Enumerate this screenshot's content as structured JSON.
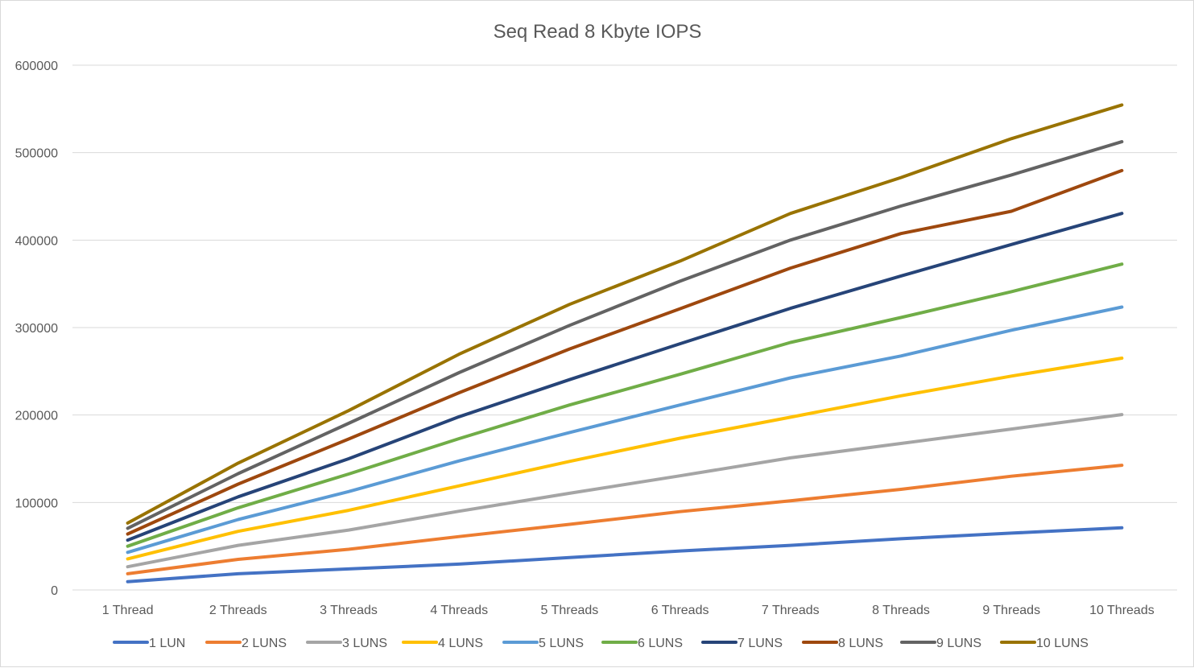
{
  "chart_data": {
    "type": "line",
    "title": "Seq Read 8 Kbyte IOPS",
    "xlabel": "",
    "ylabel": "",
    "ylim": [
      0,
      600000
    ],
    "yticks": [
      0,
      100000,
      200000,
      300000,
      400000,
      500000,
      600000
    ],
    "ytick_labels": [
      "0",
      "100000",
      "200000",
      "300000",
      "400000",
      "500000",
      "600000"
    ],
    "grid": true,
    "legend_position": "bottom",
    "categories": [
      "1 Thread",
      "2 Threads",
      "3 Threads",
      "4 Threads",
      "5 Threads",
      "6 Threads",
      "7 Threads",
      "8 Threads",
      "9 Threads",
      "10 Threads"
    ],
    "series": [
      {
        "name": "1 LUN",
        "color": "#4472C4",
        "values": [
          9500,
          18500,
          24000,
          29500,
          37000,
          44500,
          51000,
          58500,
          65000,
          71000
        ]
      },
      {
        "name": "2 LUNS",
        "color": "#ED7D31",
        "values": [
          18500,
          35000,
          46500,
          61000,
          75000,
          89500,
          102000,
          115000,
          130000,
          142500
        ]
      },
      {
        "name": "3 LUNS",
        "color": "#A5A5A5",
        "values": [
          26500,
          51000,
          68500,
          90000,
          110500,
          130500,
          151000,
          167500,
          184000,
          200500
        ]
      },
      {
        "name": "4 LUNS",
        "color": "#FFC000",
        "values": [
          35500,
          67000,
          91000,
          119000,
          147000,
          173500,
          197500,
          222000,
          244500,
          265000
        ]
      },
      {
        "name": "5 LUNS",
        "color": "#5B9BD5",
        "values": [
          43000,
          80500,
          112500,
          147500,
          180000,
          211500,
          242500,
          267500,
          297000,
          323500
        ]
      },
      {
        "name": "6 LUNS",
        "color": "#70AD47",
        "values": [
          50000,
          94000,
          132500,
          173000,
          211500,
          246500,
          283000,
          311500,
          341000,
          372500
        ]
      },
      {
        "name": "7 LUNS",
        "color": "#264478",
        "values": [
          57000,
          106500,
          150000,
          198000,
          240500,
          281500,
          322000,
          359000,
          395000,
          430500
        ]
      },
      {
        "name": "8 LUNS",
        "color": "#9E480E",
        "values": [
          64000,
          121000,
          172500,
          225500,
          275500,
          321500,
          368000,
          407500,
          433000,
          479500
        ]
      },
      {
        "name": "9 LUNS",
        "color": "#636363",
        "values": [
          70500,
          133000,
          190500,
          248500,
          302500,
          353000,
          400000,
          439000,
          474500,
          512500
        ]
      },
      {
        "name": "10 LUNS",
        "color": "#997300",
        "values": [
          76500,
          145000,
          205000,
          269500,
          326500,
          376000,
          430500,
          471500,
          516000,
          554500
        ]
      }
    ]
  }
}
